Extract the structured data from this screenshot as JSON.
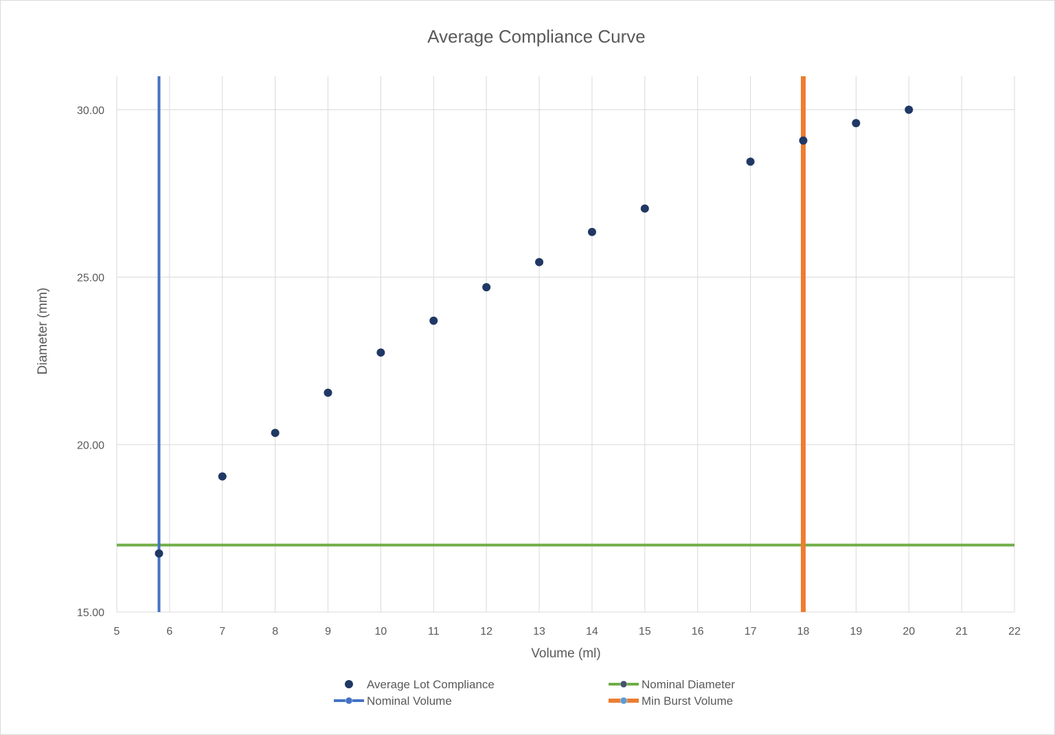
{
  "chart_data": {
    "type": "scatter",
    "title": "Average Compliance Curve",
    "xlabel": "Volume (ml)",
    "ylabel": "Diameter (mm)",
    "xlim": [
      5,
      22
    ],
    "ylim": [
      15,
      31
    ],
    "x_ticks": [
      "5",
      "6",
      "7",
      "8",
      "9",
      "10",
      "11",
      "12",
      "13",
      "14",
      "15",
      "16",
      "17",
      "18",
      "19",
      "20",
      "21",
      "22"
    ],
    "y_ticks": [
      "15.00",
      "20.00",
      "25.00",
      "30.00"
    ],
    "grid": true,
    "legend_position": "bottom",
    "series": [
      {
        "name": "Average Lot Compliance",
        "kind": "markers",
        "color": "#203864",
        "x": [
          5.8,
          7,
          8,
          9,
          10,
          11,
          12,
          13,
          14,
          15,
          17,
          18,
          19,
          20
        ],
        "y": [
          16.75,
          19.05,
          20.35,
          21.55,
          22.75,
          23.7,
          24.7,
          25.45,
          26.35,
          27.05,
          28.45,
          29.08,
          29.6,
          30.0
        ]
      },
      {
        "name": "Nominal Diameter",
        "kind": "hline",
        "color": "#70ad47",
        "y": 17
      },
      {
        "name": "Nominal Volume",
        "kind": "vline",
        "color": "#4472c4",
        "x": 5.8
      },
      {
        "name": "Min Burst Volume",
        "kind": "vline",
        "color": "#ed7d31",
        "x": 18
      }
    ]
  }
}
